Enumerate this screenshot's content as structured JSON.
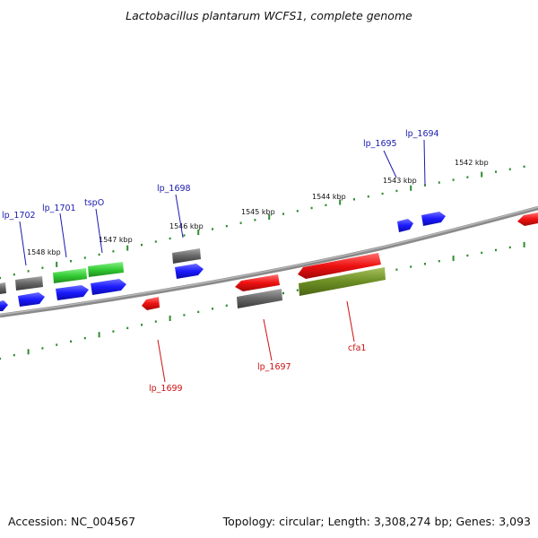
{
  "title": "Lactobacillus plantarum WCFS1, complete genome",
  "footer": {
    "accession": "Accession: NC_004567",
    "topology": "Topology: circular; Length: 3,308,274 bp; Genes: 3,093"
  },
  "colors": {
    "genome_line": "#8a8a8a",
    "tick": "#2e8b2e",
    "gene_blue": "#1a1aff",
    "gene_red": "#ee1111",
    "gene_green": "#33cc33",
    "gene_gray": "#666666",
    "gene_olive": "#6b8e23",
    "label_blue": "#1a1ab0",
    "label_red": "#cc1111"
  },
  "ticks": [
    {
      "label": "1542 kbp"
    },
    {
      "label": "1543 kbp"
    },
    {
      "label": "1544 kbp"
    },
    {
      "label": "1545 kbp"
    },
    {
      "label": "1546 kbp"
    },
    {
      "label": "1547 kbp"
    },
    {
      "label": "1548 kbp"
    }
  ],
  "gene_labels": [
    {
      "text": "lp_1694",
      "strand": "forward",
      "color": "blue"
    },
    {
      "text": "lp_1695",
      "strand": "forward",
      "color": "blue"
    },
    {
      "text": "lp_1698",
      "strand": "forward",
      "color": "blue"
    },
    {
      "text": "tspO",
      "strand": "forward",
      "color": "blue"
    },
    {
      "text": "lp_1701",
      "strand": "forward",
      "color": "blue"
    },
    {
      "text": "lp_1702",
      "strand": "forward",
      "color": "blue"
    },
    {
      "text": "cfa1",
      "strand": "reverse",
      "color": "red"
    },
    {
      "text": "lp_1697",
      "strand": "reverse",
      "color": "red"
    },
    {
      "text": "lp_1699",
      "strand": "reverse",
      "color": "red"
    }
  ],
  "genes": [
    {
      "id": "lp_1694",
      "strand": "forward",
      "track": "gene",
      "color": "blue"
    },
    {
      "id": "lp_1695",
      "strand": "forward",
      "track": "gene",
      "color": "blue"
    },
    {
      "id": "lp_1698",
      "strand": "forward",
      "track": "gene",
      "color": "blue"
    },
    {
      "id": "lp_1698",
      "strand": "forward",
      "track": "feature",
      "color": "gray"
    },
    {
      "id": "tspO",
      "strand": "forward",
      "track": "gene",
      "color": "blue"
    },
    {
      "id": "tspO",
      "strand": "forward",
      "track": "feature",
      "color": "green"
    },
    {
      "id": "lp_1701",
      "strand": "forward",
      "track": "gene",
      "color": "blue"
    },
    {
      "id": "lp_1701",
      "strand": "forward",
      "track": "feature",
      "color": "green"
    },
    {
      "id": "lp_1702",
      "strand": "forward",
      "track": "gene",
      "color": "blue"
    },
    {
      "id": "lp_1702",
      "strand": "forward",
      "track": "feature",
      "color": "gray"
    },
    {
      "id": "cfa1",
      "strand": "reverse",
      "track": "gene",
      "color": "red"
    },
    {
      "id": "cfa1",
      "strand": "reverse",
      "track": "feature",
      "color": "olive"
    },
    {
      "id": "lp_1697",
      "strand": "reverse",
      "track": "gene",
      "color": "red"
    },
    {
      "id": "lp_1697",
      "strand": "reverse",
      "track": "feature",
      "color": "gray"
    },
    {
      "id": "lp_1699",
      "strand": "reverse",
      "track": "gene",
      "color": "red"
    },
    {
      "id": "lp_1693",
      "strand": "reverse",
      "track": "gene",
      "color": "red"
    }
  ]
}
